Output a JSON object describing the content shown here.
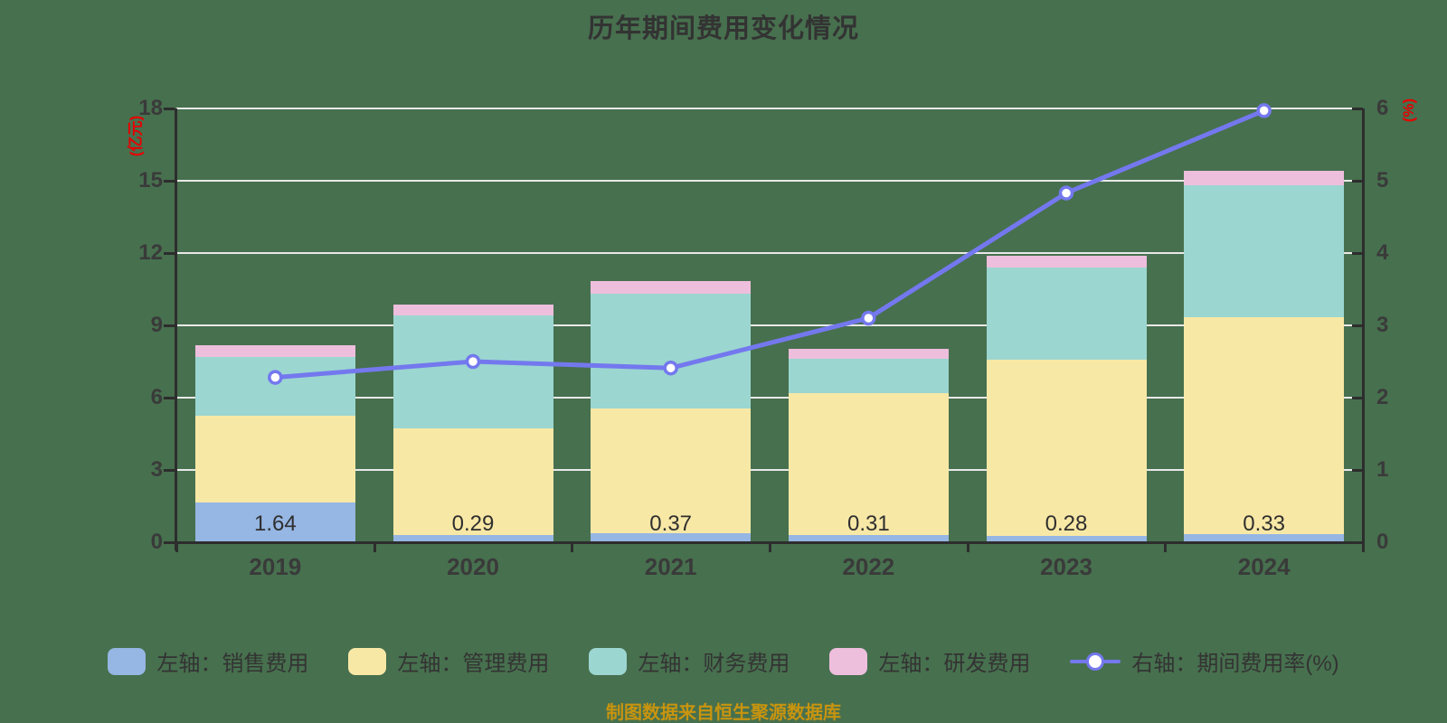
{
  "title": "历年期间费用变化情况",
  "footer": "制图数据来自恒生聚源数据库",
  "colors": {
    "background": "#47704e",
    "title": "#333333",
    "footer": "#c8940f",
    "axis": "#2d2d2d",
    "grid": "#e8e8e8",
    "tick_label": "#3a3a3a",
    "unit_label": "#e60000",
    "bar_label": "#2f2f2f",
    "series": {
      "sales": "#96b6e3",
      "admin": "#f8e8a6",
      "finance": "#9bd6d1",
      "rd": "#eebedd",
      "rate_line": "#7478ee"
    }
  },
  "left_axis": {
    "unit": "(亿元)",
    "min": 0,
    "max": 18,
    "step": 3,
    "ticks": [
      "0",
      "3",
      "6",
      "9",
      "12",
      "15",
      "18"
    ]
  },
  "right_axis": {
    "unit": "(%)",
    "min": 0,
    "max": 6,
    "step": 1,
    "ticks": [
      "0",
      "1",
      "2",
      "3",
      "4",
      "5",
      "6"
    ]
  },
  "chart_data": {
    "type": "bar",
    "subtype": "stacked-bar-with-line",
    "categories": [
      "2019",
      "2020",
      "2021",
      "2022",
      "2023",
      "2024"
    ],
    "series": [
      {
        "key": "sales",
        "name": "左轴：销售费用",
        "axis": "left",
        "type": "bar",
        "values": [
          1.64,
          0.29,
          0.37,
          0.31,
          0.28,
          0.33
        ]
      },
      {
        "key": "admin",
        "name": "左轴：管理费用",
        "axis": "left",
        "type": "bar",
        "values": [
          3.62,
          4.44,
          5.17,
          5.86,
          7.28,
          8.99
        ]
      },
      {
        "key": "finance",
        "name": "左轴：财务费用",
        "axis": "left",
        "type": "bar",
        "values": [
          2.41,
          4.69,
          4.76,
          1.44,
          3.84,
          5.49
        ]
      },
      {
        "key": "rd",
        "name": "左轴：研发费用",
        "axis": "left",
        "type": "bar",
        "values": [
          0.5,
          0.46,
          0.53,
          0.41,
          0.47,
          0.59
        ]
      },
      {
        "key": "rate_line",
        "name": "右轴：期间费用率(%)",
        "axis": "right",
        "type": "line",
        "values": [
          2.28,
          2.5,
          2.41,
          3.1,
          4.83,
          5.97
        ]
      }
    ],
    "bar_value_labels": [
      "1.64",
      "0.29",
      "0.37",
      "0.31",
      "0.28",
      "0.33"
    ],
    "title": "历年期间费用变化情况",
    "xlabel": "",
    "ylabel_left": "(亿元)",
    "ylabel_right": "(%)",
    "ylim_left": [
      0,
      18
    ],
    "ylim_right": [
      0,
      6
    ],
    "grid": true,
    "legend_position": "bottom"
  }
}
